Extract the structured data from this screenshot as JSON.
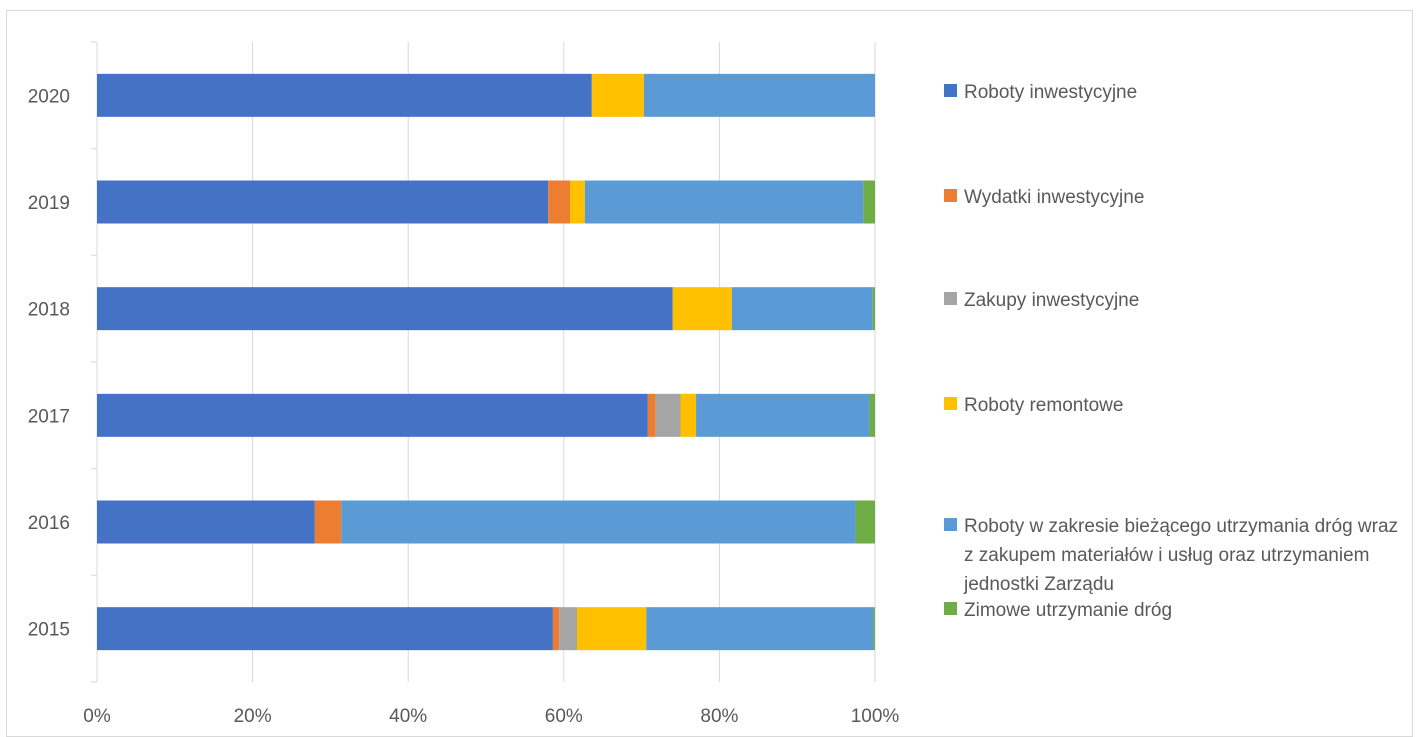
{
  "chart_data": {
    "type": "bar",
    "orientation": "horizontal",
    "stacked": "percent",
    "title": "",
    "xlabel": "",
    "ylabel": "",
    "xlim": [
      0,
      100
    ],
    "x_ticks": [
      "0%",
      "20%",
      "40%",
      "60%",
      "80%",
      "100%"
    ],
    "categories": [
      "2020",
      "2019",
      "2018",
      "2017",
      "2016",
      "2015"
    ],
    "grid": "vertical",
    "legend_position": "right",
    "series": [
      {
        "name": "Roboty inwestycyjne",
        "color": "#4472C4",
        "values": [
          63.6,
          58.0,
          74.0,
          70.8,
          28.0,
          58.6
        ]
      },
      {
        "name": "Wydatki inwestycyjne",
        "color": "#ED7D31",
        "values": [
          0,
          2.8,
          0,
          1.0,
          3.4,
          0.8
        ]
      },
      {
        "name": "Zakupy inwestycyjne",
        "color": "#A5A5A5",
        "values": [
          0,
          0,
          0,
          3.2,
          0,
          2.3
        ]
      },
      {
        "name": "Roboty remontowe",
        "color": "#FFC000",
        "values": [
          6.7,
          1.9,
          7.6,
          2.0,
          0,
          8.9
        ]
      },
      {
        "name": "Roboty w zakresie bieżącego utrzymania dróg wraz z zakupem materiałów i usług oraz utrzymaniem jednostki Zarządu",
        "color": "#5B9BD5",
        "values": [
          29.7,
          35.8,
          18.1,
          22.3,
          66.1,
          29.2
        ]
      },
      {
        "name": "Zimowe utrzymanie dróg",
        "color": "#70AD47",
        "values": [
          0,
          1.5,
          0.3,
          0.7,
          2.5,
          0.2
        ]
      }
    ]
  }
}
